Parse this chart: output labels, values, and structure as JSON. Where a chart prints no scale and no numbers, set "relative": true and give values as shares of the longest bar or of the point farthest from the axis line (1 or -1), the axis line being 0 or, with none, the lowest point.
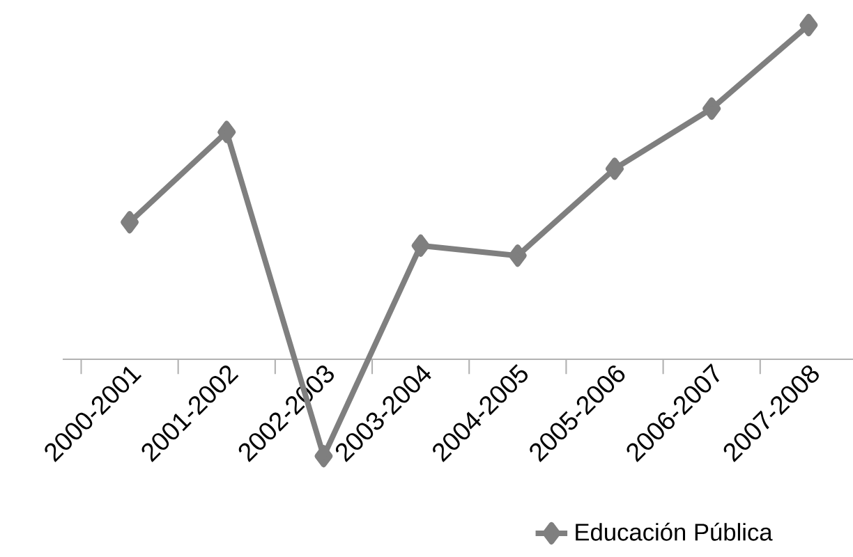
{
  "chart_data": {
    "type": "line",
    "relative": true,
    "legend": "bottom",
    "marker": "diamond",
    "line_style": "solid",
    "categories": [
      "2000-2001",
      "2001-2002",
      "2002-2003",
      "2003-2004",
      "2004-2005",
      "2005-2006",
      "2006-2007",
      "2007-2008"
    ],
    "series": [
      {
        "name": "Educación Pública",
        "color": "#7f7f7f",
        "values": [
          0.41,
          0.68,
          -0.29,
          0.34,
          0.31,
          0.57,
          0.75,
          1
        ]
      }
    ]
  }
}
